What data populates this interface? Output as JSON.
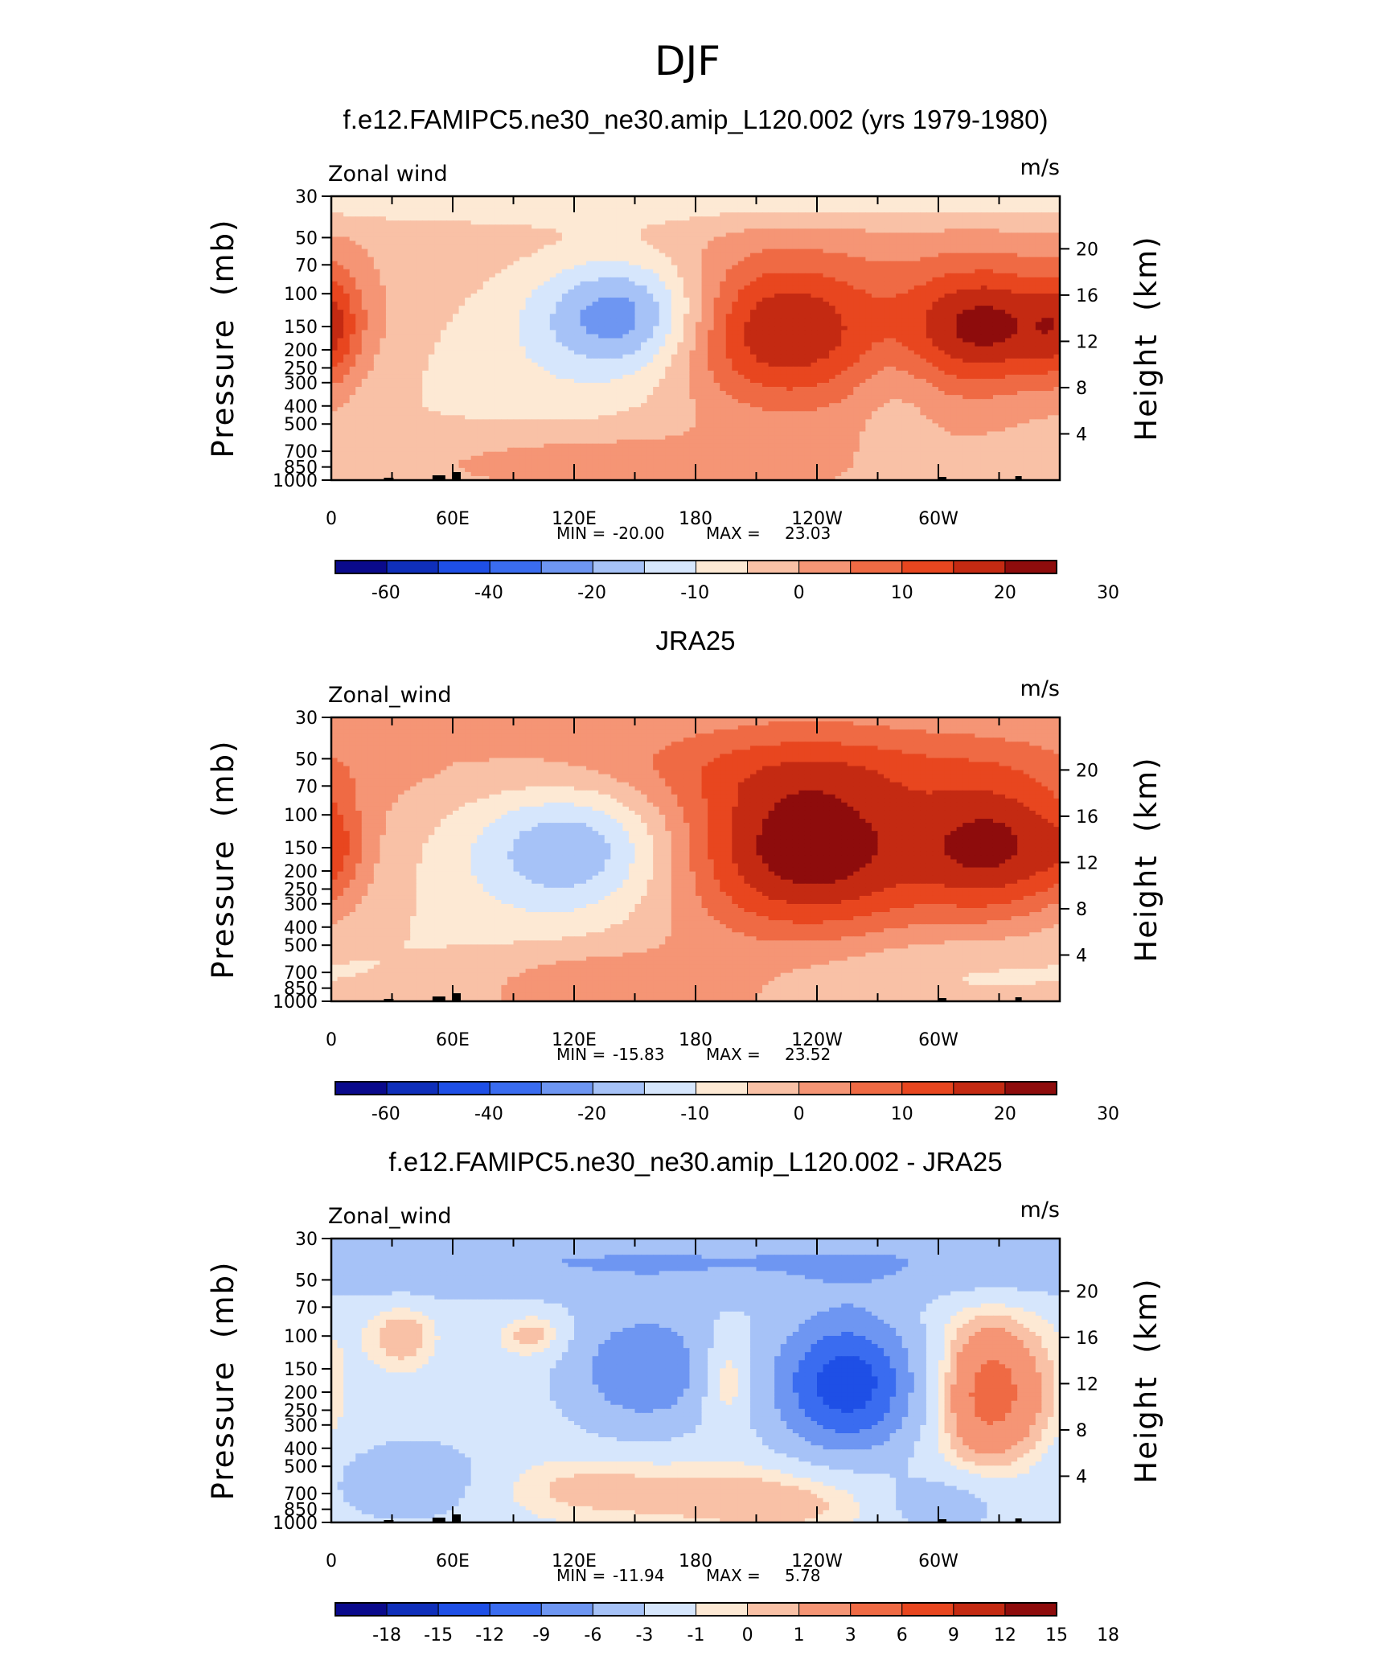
{
  "figure": {
    "title": "DJF"
  },
  "colors": {
    "palette": [
      "#0a0a8c",
      "#0f2fba",
      "#1e4fe6",
      "#3a6cf0",
      "#6e96f2",
      "#a6c2f7",
      "#d6e6fc",
      "#fde9d4",
      "#f9c1a6",
      "#f59575",
      "#ef6a44",
      "#e8461f",
      "#c42a12",
      "#8e0c0c"
    ],
    "frame": "#000000",
    "topography": "#000000"
  },
  "chart_data": [
    {
      "type": "heatmap",
      "title": "f.e12.FAMIPC5.ne30_ne30.amip_L120.002 (yrs 1979-1980)",
      "variable_label": "Zonal wind",
      "units": "m/s",
      "ylabel": "Pressure  (mb)",
      "ylabel_right": "Height  (km)",
      "pressure_ticks": [
        "30",
        "50",
        "70",
        "100",
        "150",
        "200",
        "250",
        "300",
        "400",
        "500",
        "700",
        "850",
        "1000"
      ],
      "pressure_values": [
        30,
        50,
        70,
        100,
        150,
        200,
        250,
        300,
        400,
        500,
        700,
        850,
        1000
      ],
      "height_ticks": [
        "20",
        "16",
        "12",
        "8",
        "4"
      ],
      "height_values": [
        20,
        16,
        12,
        8,
        4
      ],
      "lon_ticks": [
        "0",
        "60E",
        "120E",
        "180",
        "120W",
        "60W"
      ],
      "lon_values": [
        0,
        60,
        120,
        180,
        240,
        300
      ],
      "xlim": [
        0,
        360
      ],
      "ylim": [
        1000,
        30
      ],
      "stat_min_label": "MIN = ",
      "stat_min": "-20.00",
      "stat_max_label": "MAX = ",
      "stat_max": "23.03",
      "colorbar_labels": [
        "-60",
        "-40",
        "-20",
        "-10",
        "0",
        "10",
        "20",
        "30"
      ],
      "contour_levels": [
        -70,
        -60,
        -50,
        -40,
        -30,
        -20,
        -15,
        -10,
        -5,
        0,
        5,
        10,
        15,
        20,
        25,
        30,
        35
      ],
      "field": {
        "background": 0,
        "features": [
          {
            "lon": 180,
            "p": 30,
            "amp": -8,
            "wlon": 400,
            "wz": 0.25
          },
          {
            "lon": 145,
            "p": 130,
            "amp": -20,
            "wlon": 30,
            "wz": 0.5
          },
          {
            "lon": 100,
            "p": 300,
            "amp": -7,
            "wlon": 80,
            "wz": 1.2
          },
          {
            "lon": 220,
            "p": 160,
            "amp": 22,
            "wlon": 38,
            "wz": 0.65
          },
          {
            "lon": 325,
            "p": 150,
            "amp": 23,
            "wlon": 32,
            "wz": 0.55
          },
          {
            "lon": 278,
            "p": 280,
            "amp": -5,
            "wlon": 15,
            "wz": 0.6
          },
          {
            "lon": 120,
            "p": 780,
            "amp": 7,
            "wlon": 60,
            "wz": 0.3
          },
          {
            "lon": 0,
            "p": 150,
            "amp": 9,
            "wlon": 10,
            "wz": 0.5
          }
        ]
      }
    },
    {
      "type": "heatmap",
      "title": "JRA25",
      "variable_label": "Zonal_wind",
      "units": "m/s",
      "ylabel": "Pressure  (mb)",
      "ylabel_right": "Height  (km)",
      "pressure_ticks": [
        "30",
        "50",
        "70",
        "100",
        "150",
        "200",
        "250",
        "300",
        "400",
        "500",
        "700",
        "850",
        "1000"
      ],
      "pressure_values": [
        30,
        50,
        70,
        100,
        150,
        200,
        250,
        300,
        400,
        500,
        700,
        850,
        1000
      ],
      "height_ticks": [
        "20",
        "16",
        "12",
        "8",
        "4"
      ],
      "height_values": [
        20,
        16,
        12,
        8,
        4
      ],
      "lon_ticks": [
        "0",
        "60E",
        "120E",
        "180",
        "120W",
        "60W"
      ],
      "lon_values": [
        0,
        60,
        120,
        180,
        240,
        300
      ],
      "xlim": [
        0,
        360
      ],
      "ylim": [
        1000,
        30
      ],
      "stat_min_label": "MIN = ",
      "stat_min": "-15.83",
      "stat_max_label": "MAX = ",
      "stat_max": "23.52",
      "colorbar_labels": [
        "-60",
        "-40",
        "-20",
        "-10",
        "0",
        "10",
        "20",
        "30"
      ],
      "contour_levels": [
        -70,
        -60,
        -50,
        -40,
        -30,
        -20,
        -15,
        -10,
        -5,
        0,
        5,
        10,
        15,
        20,
        25,
        30,
        35
      ],
      "field": {
        "background": 0.5,
        "features": [
          {
            "lon": 235,
            "p": 150,
            "amp": 24,
            "wlon": 45,
            "wz": 0.75
          },
          {
            "lon": 330,
            "p": 150,
            "amp": 20,
            "wlon": 28,
            "wz": 0.6
          },
          {
            "lon": 240,
            "p": 55,
            "amp": 6,
            "wlon": 110,
            "wz": 0.35
          },
          {
            "lon": 120,
            "p": 150,
            "amp": -16,
            "wlon": 35,
            "wz": 0.55
          },
          {
            "lon": 80,
            "p": 280,
            "amp": -6,
            "wlon": 70,
            "wz": 1.0
          },
          {
            "lon": 130,
            "p": 780,
            "amp": 6,
            "wlon": 45,
            "wz": 0.3
          },
          {
            "lon": 300,
            "p": 700,
            "amp": -6,
            "wlon": 70,
            "wz": 0.4
          },
          {
            "lon": 0,
            "p": 150,
            "amp": 6,
            "wlon": 10,
            "wz": 0.4
          }
        ]
      }
    },
    {
      "type": "heatmap",
      "title": "f.e12.FAMIPC5.ne30_ne30.amip_L120.002 - JRA25",
      "variable_label": "Zonal_wind",
      "units": "m/s",
      "ylabel": "Pressure  (mb)",
      "ylabel_right": "Height  (km)",
      "pressure_ticks": [
        "30",
        "50",
        "70",
        "100",
        "150",
        "200",
        "250",
        "300",
        "400",
        "500",
        "700",
        "850",
        "1000"
      ],
      "pressure_values": [
        30,
        50,
        70,
        100,
        150,
        200,
        250,
        300,
        400,
        500,
        700,
        850,
        1000
      ],
      "height_ticks": [
        "20",
        "16",
        "12",
        "8",
        "4"
      ],
      "height_values": [
        20,
        16,
        12,
        8,
        4
      ],
      "lon_ticks": [
        "0",
        "60E",
        "120E",
        "180",
        "120W",
        "60W"
      ],
      "lon_values": [
        0,
        60,
        120,
        180,
        240,
        300
      ],
      "xlim": [
        0,
        360
      ],
      "ylim": [
        1000,
        30
      ],
      "stat_min_label": "MIN = ",
      "stat_min": "-11.94",
      "stat_max_label": "MAX = ",
      "stat_max": "5.78",
      "colorbar_labels": [
        "-18",
        "-15",
        "-12",
        "-9",
        "-6",
        "-3",
        "-1",
        "0",
        "1",
        "3",
        "6",
        "9",
        "12",
        "15",
        "18"
      ],
      "colorbar_label_mode": "edges",
      "contour_levels": [
        -21,
        -18,
        -15,
        -12,
        -9,
        -6,
        -3,
        -1,
        0,
        1,
        3,
        6,
        9,
        12,
        15,
        18,
        21
      ],
      "field": {
        "background": -2,
        "features": [
          {
            "lon": 180,
            "p": 40,
            "amp": -4,
            "wlon": 400,
            "wz": 0.3
          },
          {
            "lon": 255,
            "p": 180,
            "amp": -11.9,
            "wlon": 25,
            "wz": 0.6
          },
          {
            "lon": 155,
            "p": 150,
            "amp": -7,
            "wlon": 25,
            "wz": 0.5
          },
          {
            "lon": 325,
            "p": 200,
            "amp": 6,
            "wlon": 22,
            "wz": 0.7
          },
          {
            "lon": 195,
            "p": 170,
            "amp": 4,
            "wlon": 10,
            "wz": 0.4
          },
          {
            "lon": 100,
            "p": 100,
            "amp": 3,
            "wlon": 12,
            "wz": 0.2
          },
          {
            "lon": 35,
            "p": 100,
            "amp": 3,
            "wlon": 12,
            "wz": 0.3
          },
          {
            "lon": 230,
            "p": 750,
            "amp": 3,
            "wlon": 60,
            "wz": 0.35
          },
          {
            "lon": 120,
            "p": 650,
            "amp": 2,
            "wlon": 40,
            "wz": 0.3
          },
          {
            "lon": 300,
            "p": 780,
            "amp": -4,
            "wlon": 25,
            "wz": 0.3
          },
          {
            "lon": 40,
            "p": 600,
            "amp": -3,
            "wlon": 30,
            "wz": 0.35
          }
        ]
      }
    }
  ]
}
